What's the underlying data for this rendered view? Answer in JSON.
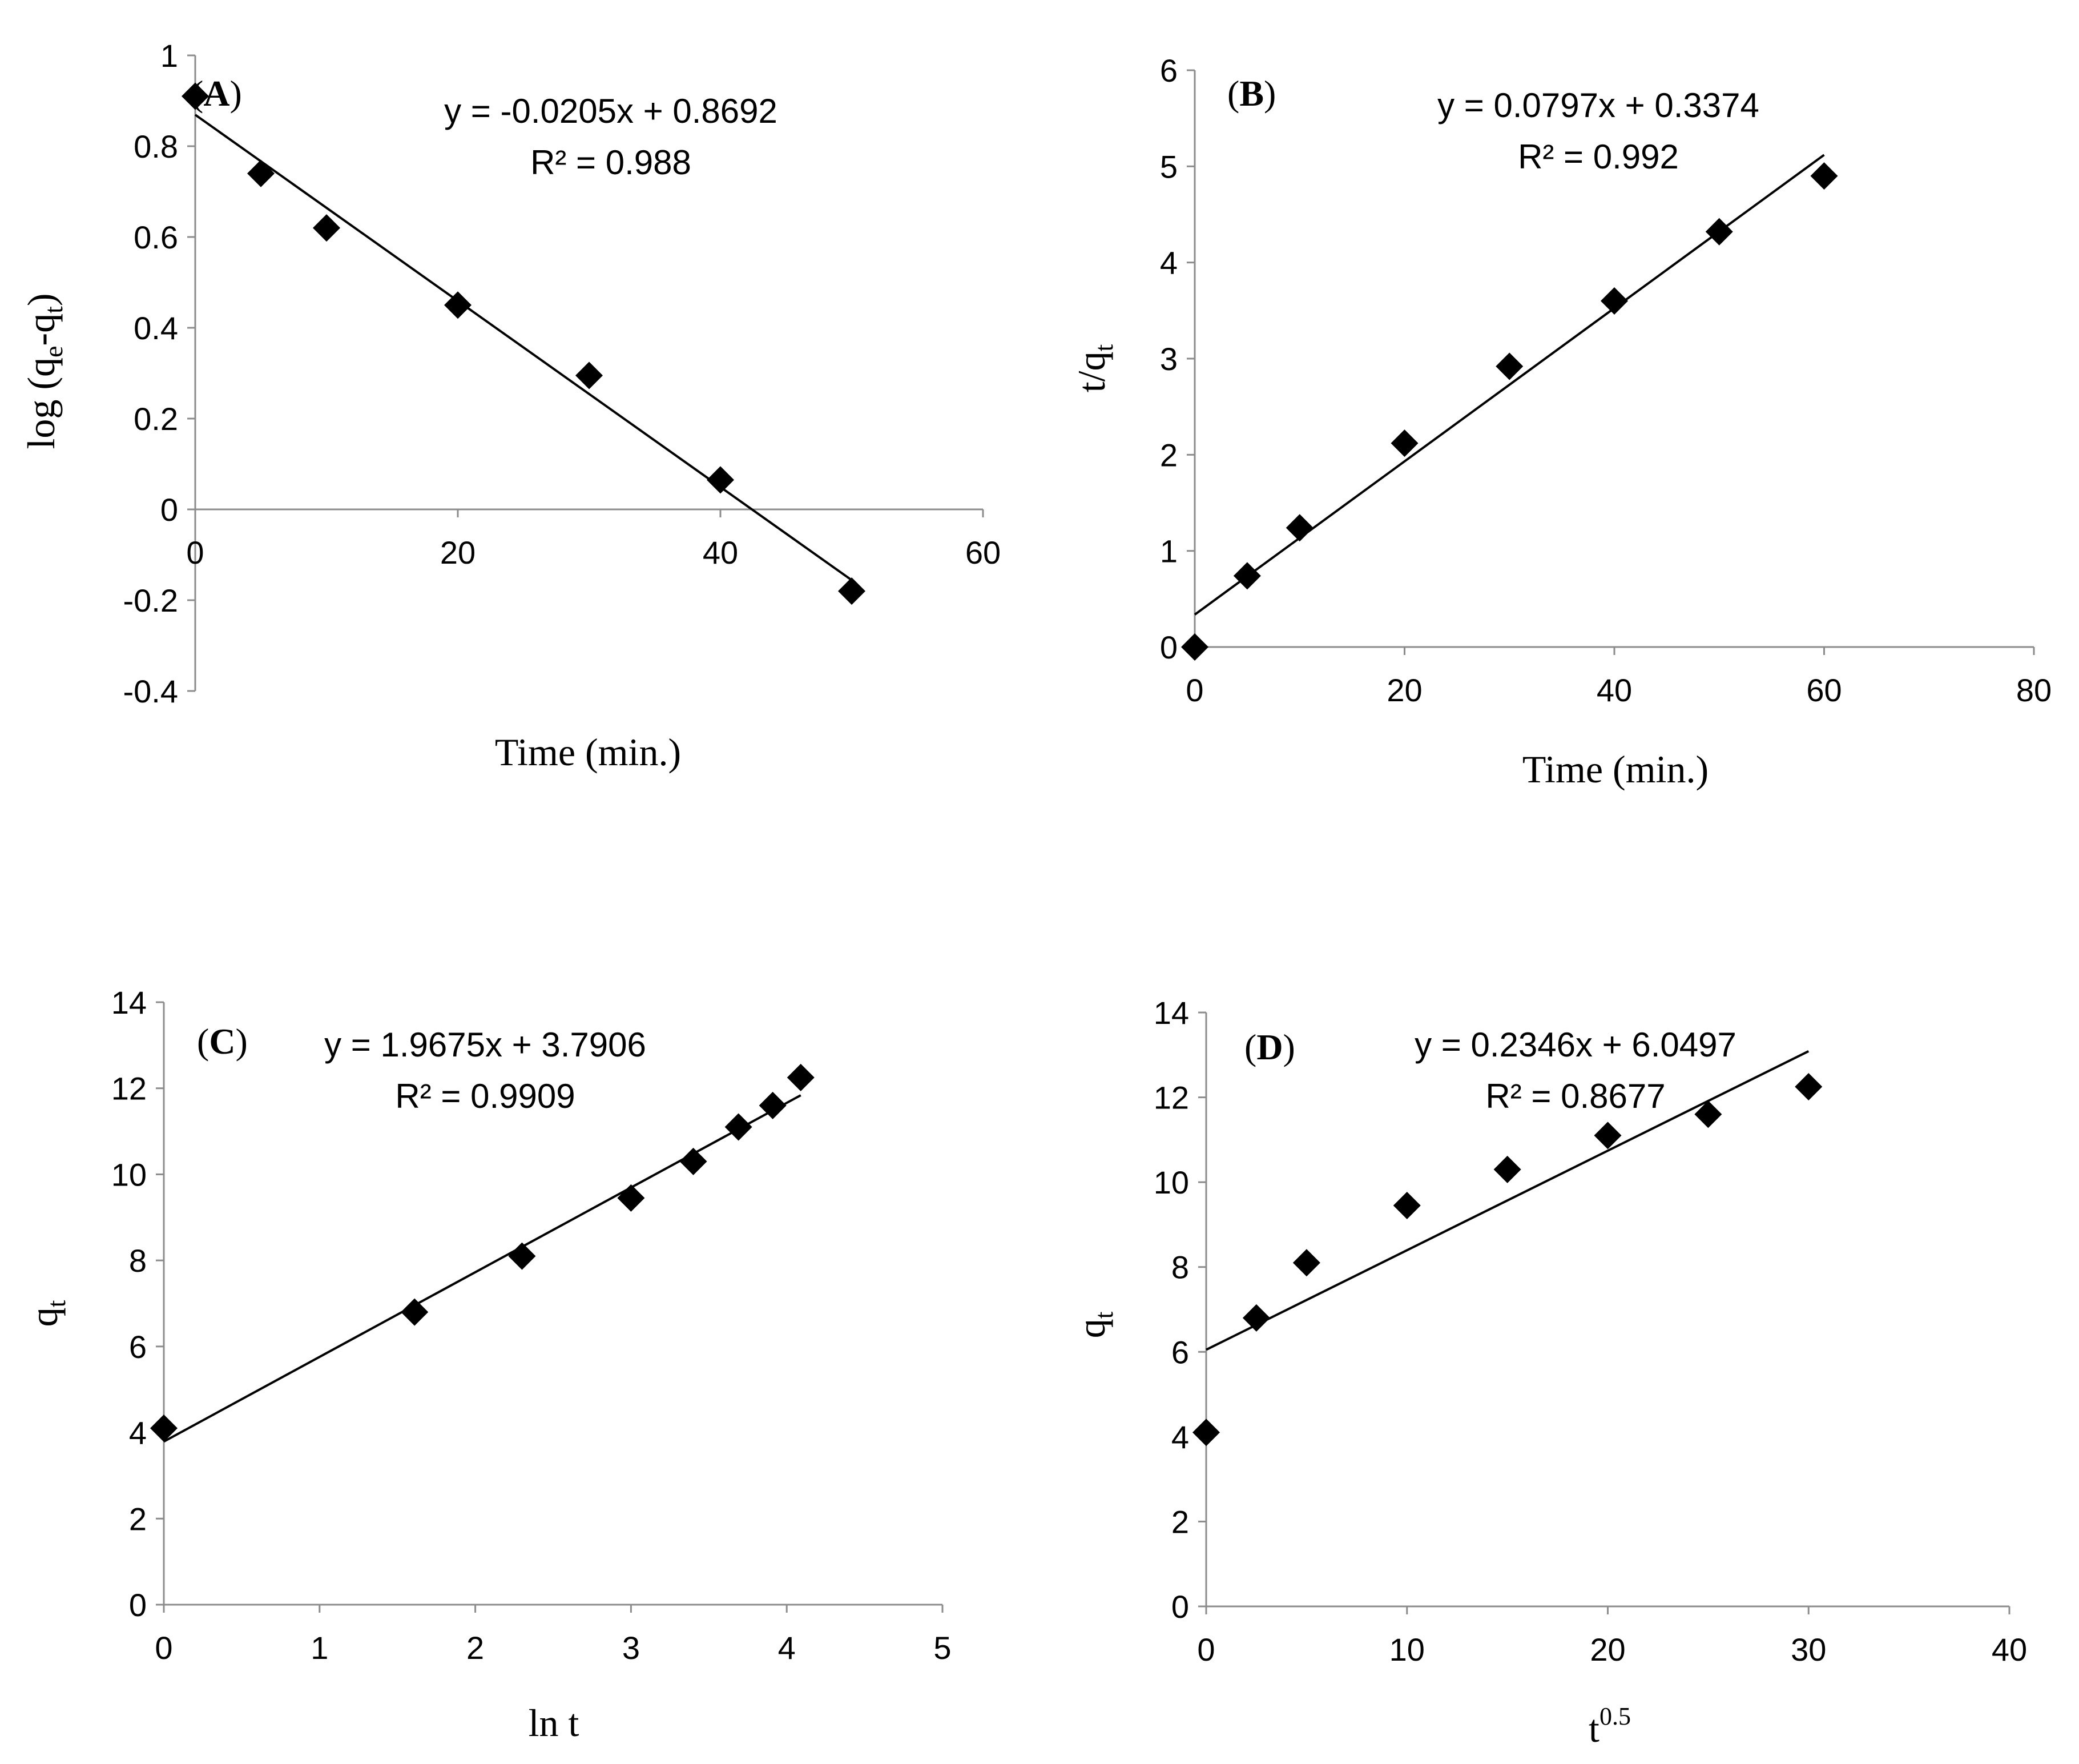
{
  "chart_data": [
    {
      "id": "A",
      "type": "scatter",
      "panel_label": "A",
      "xlabel": "Time (min.)",
      "ylabel": "log (q_e-q_t)",
      "ylabel_parts": {
        "pre": "log (q",
        "sub1": "e",
        "mid": "-q",
        "sub2": "t",
        "post": ")"
      },
      "xlim": [
        0,
        60
      ],
      "ylim": [
        -0.4,
        1
      ],
      "xticks": [
        0,
        20,
        40,
        60
      ],
      "yticks": [
        -0.4,
        -0.2,
        0,
        0.2,
        0.4,
        0.6,
        0.8,
        1
      ],
      "xtick_labels": [
        "0",
        "20",
        "40",
        "60"
      ],
      "ytick_labels": [
        "-0.4",
        "-0.2",
        "0",
        "0.2",
        "0.4",
        "0.6",
        "0.8",
        "1"
      ],
      "x": [
        0,
        5,
        10,
        20,
        30,
        40,
        50
      ],
      "y": [
        0.91,
        0.74,
        0.62,
        0.45,
        0.295,
        0.065,
        -0.18
      ],
      "trendline": {
        "slope": -0.0205,
        "intercept": 0.8692,
        "x_range": [
          0,
          50
        ]
      },
      "equation": "y = -0.0205x + 0.8692",
      "r_squared": "R² = 0.988"
    },
    {
      "id": "B",
      "type": "scatter",
      "panel_label": "B",
      "xlabel": "Time (min.)",
      "ylabel": "t/q_t",
      "ylabel_parts": {
        "pre": "t/q",
        "sub1": "t"
      },
      "xlim": [
        0,
        80
      ],
      "ylim": [
        0,
        6
      ],
      "xticks": [
        0,
        20,
        40,
        60,
        80
      ],
      "yticks": [
        0,
        1,
        2,
        3,
        4,
        5,
        6
      ],
      "xtick_labels": [
        "0",
        "20",
        "40",
        "60",
        "80"
      ],
      "ytick_labels": [
        "0",
        "1",
        "2",
        "3",
        "4",
        "5",
        "6"
      ],
      "x": [
        0,
        5,
        10,
        20,
        30,
        40,
        50,
        60
      ],
      "y": [
        0,
        0.74,
        1.24,
        2.12,
        2.92,
        3.6,
        4.32,
        4.9
      ],
      "trendline": {
        "slope": 0.0797,
        "intercept": 0.3374,
        "x_range": [
          0,
          60
        ]
      },
      "equation": "y = 0.0797x + 0.3374",
      "r_squared": "R² = 0.992"
    },
    {
      "id": "C",
      "type": "scatter",
      "panel_label": "C",
      "xlabel": "ln t",
      "ylabel": "q_t",
      "ylabel_parts": {
        "pre": "q",
        "sub1": "t"
      },
      "xlim": [
        0,
        5
      ],
      "ylim": [
        0,
        14
      ],
      "xticks": [
        0,
        1,
        2,
        3,
        4,
        5
      ],
      "yticks": [
        0,
        2,
        4,
        6,
        8,
        10,
        12,
        14
      ],
      "xtick_labels": [
        "0",
        "1",
        "2",
        "3",
        "4",
        "5"
      ],
      "ytick_labels": [
        "0",
        "2",
        "4",
        "6",
        "8",
        "10",
        "12",
        "14"
      ],
      "x": [
        0,
        1.61,
        2.3,
        3.0,
        3.4,
        3.69,
        3.91,
        4.09
      ],
      "y": [
        4.1,
        6.8,
        8.1,
        9.45,
        10.3,
        11.1,
        11.6,
        12.25
      ],
      "trendline": {
        "slope": 1.9675,
        "intercept": 3.7906,
        "x_range": [
          0,
          4.09
        ]
      },
      "equation": "y = 1.9675x + 3.7906",
      "r_squared": "R² = 0.9909"
    },
    {
      "id": "D",
      "type": "scatter",
      "panel_label": "D",
      "xlabel": "t^0.5",
      "xlabel_parts": {
        "pre": "t",
        "sup": "0.5"
      },
      "ylabel": "q_t",
      "ylabel_parts": {
        "pre": "q",
        "sub1": "t"
      },
      "xlim": [
        0,
        40
      ],
      "ylim": [
        0,
        14
      ],
      "xticks": [
        0,
        10,
        20,
        30,
        40
      ],
      "yticks": [
        0,
        2,
        4,
        6,
        8,
        10,
        12,
        14
      ],
      "xtick_labels": [
        "0",
        "10",
        "20",
        "30",
        "40"
      ],
      "ytick_labels": [
        "0",
        "2",
        "4",
        "6",
        "8",
        "10",
        "12",
        "14"
      ],
      "x": [
        0,
        2.5,
        5,
        10,
        15,
        20,
        25,
        30
      ],
      "y": [
        4.1,
        6.8,
        8.1,
        9.45,
        10.3,
        11.1,
        11.6,
        12.25
      ],
      "trendline": {
        "slope": 0.2346,
        "intercept": 6.0497,
        "x_range": [
          0,
          30
        ]
      },
      "equation": "y = 0.2346x + 6.0497",
      "r_squared": "R² = 0.8677"
    }
  ]
}
